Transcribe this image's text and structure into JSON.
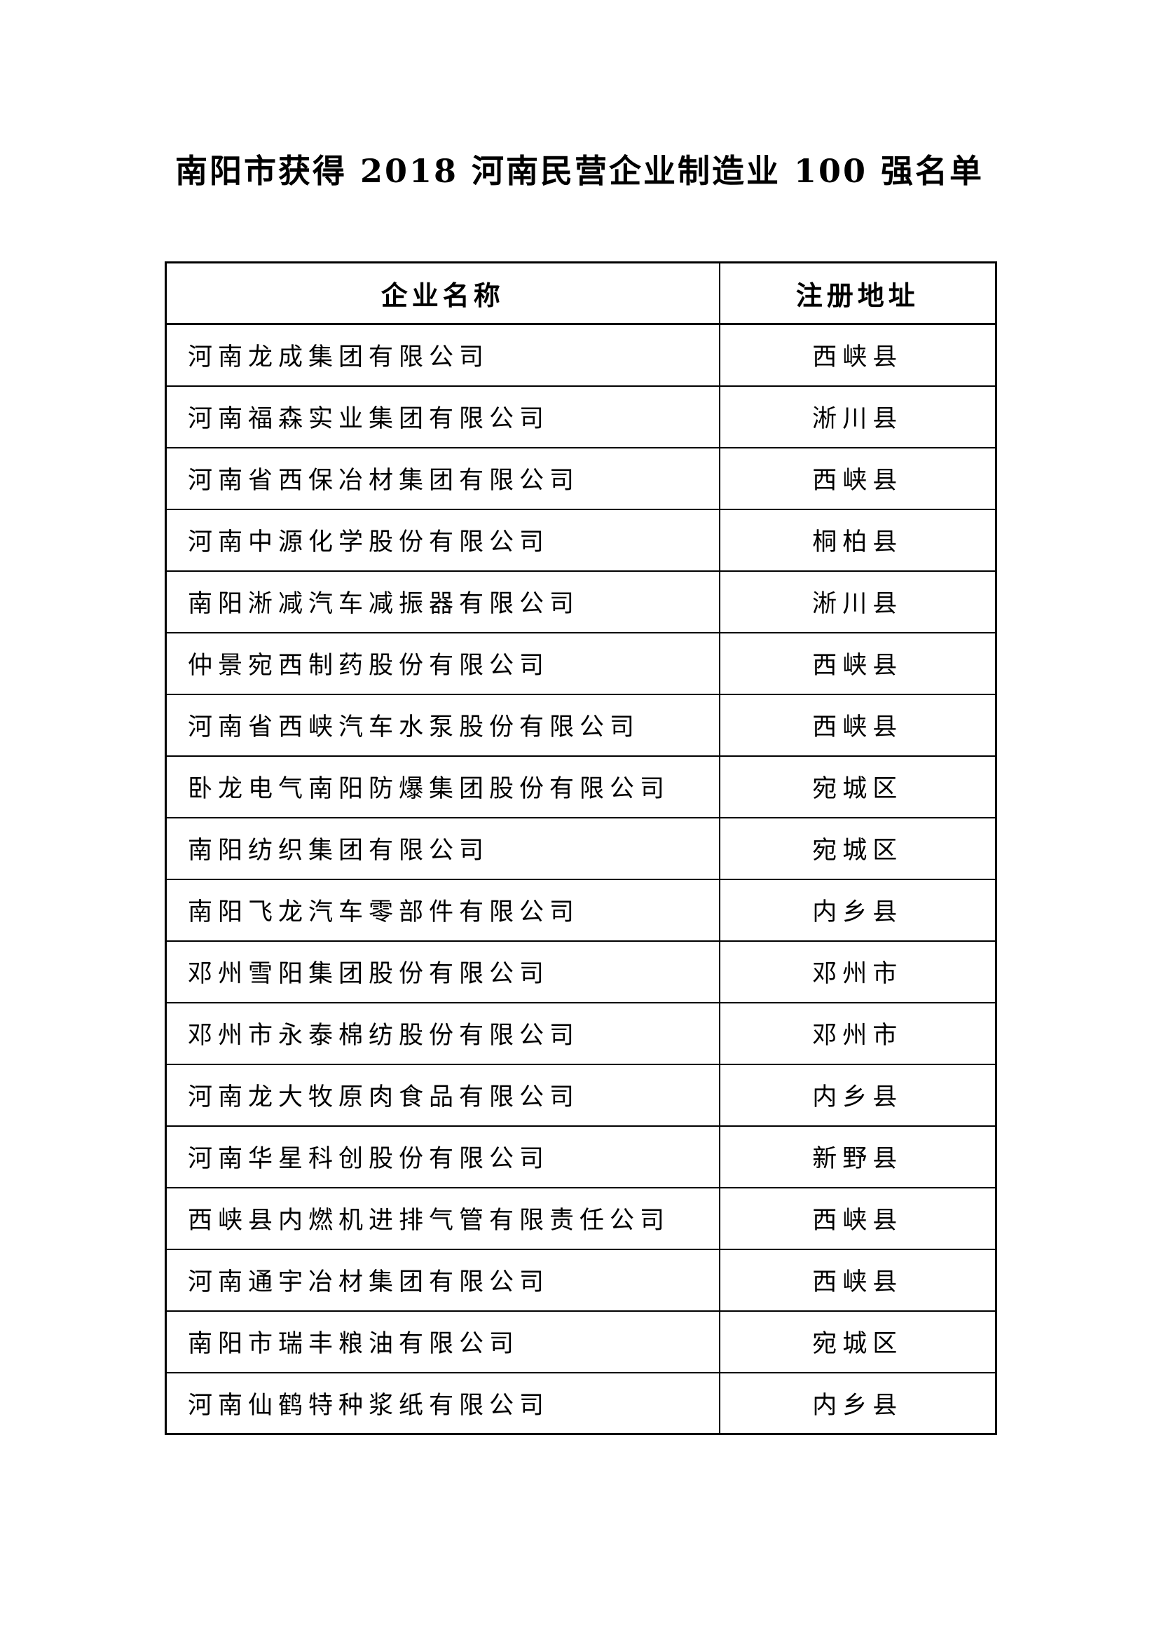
{
  "page": {
    "title": "南阳市获得 2018 河南民营企业制造业 100 强名单"
  },
  "table": {
    "headers": [
      "企业名称",
      "注册地址"
    ],
    "rows": [
      {
        "company": "河南龙成集团有限公司",
        "address": "西峡县"
      },
      {
        "company": "河南福森实业集团有限公司",
        "address": "淅川县"
      },
      {
        "company": "河南省西保冶材集团有限公司",
        "address": "西峡县"
      },
      {
        "company": "河南中源化学股份有限公司",
        "address": "桐柏县"
      },
      {
        "company": "南阳淅减汽车减振器有限公司",
        "address": "淅川县"
      },
      {
        "company": "仲景宛西制药股份有限公司",
        "address": "西峡县"
      },
      {
        "company": "河南省西峡汽车水泵股份有限公司",
        "address": "西峡县"
      },
      {
        "company": "卧龙电气南阳防爆集团股份有限公司",
        "address": "宛城区"
      },
      {
        "company": "南阳纺织集团有限公司",
        "address": "宛城区"
      },
      {
        "company": "南阳飞龙汽车零部件有限公司",
        "address": "内乡县"
      },
      {
        "company": "邓州雪阳集团股份有限公司",
        "address": "邓州市"
      },
      {
        "company": "邓州市永泰棉纺股份有限公司",
        "address": "邓州市"
      },
      {
        "company": "河南龙大牧原肉食品有限公司",
        "address": "内乡县"
      },
      {
        "company": "河南华星科创股份有限公司",
        "address": "新野县"
      },
      {
        "company": "西峡县内燃机进排气管有限责任公司",
        "address": "西峡县"
      },
      {
        "company": "河南通宇冶材集团有限公司",
        "address": "西峡县"
      },
      {
        "company": "南阳市瑞丰粮油有限公司",
        "address": "宛城区"
      },
      {
        "company": "河南仙鹤特种浆纸有限公司",
        "address": "内乡县"
      }
    ]
  }
}
